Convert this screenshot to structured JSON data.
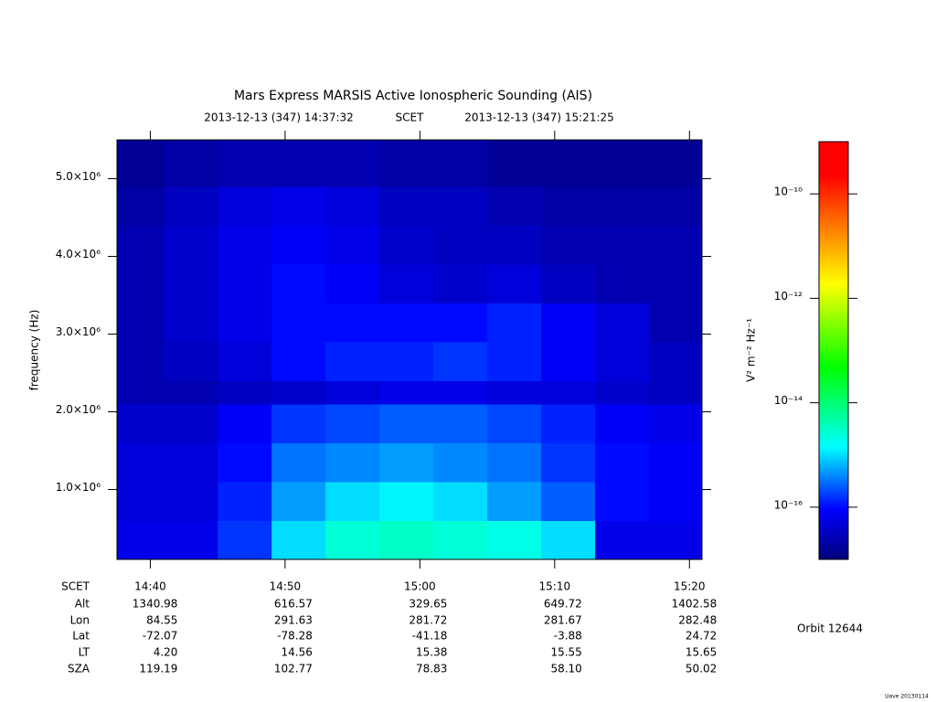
{
  "chart_data": {
    "type": "heatmap",
    "title": "Mars Express MARSIS Active Ionospheric Sounding (AIS)",
    "subtitle_start": "2013-12-13 (347) 14:37:32",
    "subtitle_frame": "SCET",
    "subtitle_end": "2013-12-13 (347) 15:21:25",
    "ylabel": "frequency (Hz)",
    "colorbar_label": "V² m⁻² Hz⁻¹",
    "xlim": [
      877.53,
      920.93
    ],
    "xticks": [
      {
        "value": 880,
        "label": "14:40"
      },
      {
        "value": 890,
        "label": "14:50"
      },
      {
        "value": 900,
        "label": "15:00"
      },
      {
        "value": 910,
        "label": "15:10"
      },
      {
        "value": 920,
        "label": "15:20"
      }
    ],
    "ylim": [
      100000,
      5500000
    ],
    "yticks": [
      {
        "value": 1000000,
        "label": "1.0×10⁶"
      },
      {
        "value": 2000000,
        "label": "2.0×10⁶"
      },
      {
        "value": 3000000,
        "label": "3.0×10⁶"
      },
      {
        "value": 4000000,
        "label": "4.0×10⁶"
      },
      {
        "value": 5000000,
        "label": "5.0×10⁶"
      }
    ],
    "clim": [
      1e-17,
      1e-09
    ],
    "clog": true,
    "cticks": [
      {
        "value": 1e-10,
        "label": "10⁻¹⁰"
      },
      {
        "value": 1e-12,
        "label": "10⁻¹²"
      },
      {
        "value": 1e-14,
        "label": "10⁻¹⁴"
      },
      {
        "value": 1e-16,
        "label": "10⁻¹⁶"
      }
    ],
    "colormap": [
      {
        "at": 0,
        "color": "#00007a"
      },
      {
        "at": 0.12,
        "color": "#0000ff"
      },
      {
        "at": 0.27,
        "color": "#00ffff"
      },
      {
        "at": 0.46,
        "color": "#00ff00"
      },
      {
        "at": 0.66,
        "color": "#ffff00"
      },
      {
        "at": 0.92,
        "color": "#ff0000"
      },
      {
        "at": 1,
        "color": "#ff0000"
      }
    ],
    "x_bins": [
      877.53,
      881,
      885,
      889,
      893,
      897,
      901,
      905,
      909,
      913,
      917,
      920.93
    ],
    "y_bins": [
      100000,
      600000,
      1100000,
      1600000,
      2100000,
      2400000,
      2900000,
      3400000,
      3900000,
      4400000,
      4900000,
      5500000
    ],
    "values": [
      [
        6.3e-17,
        6.3e-17,
        1.6e-16,
        1e-15,
        2.5e-15,
        3.2e-15,
        2.5e-15,
        2e-15,
        1e-15,
        6.3e-17,
        6.3e-17
      ],
      [
        5e-17,
        5e-17,
        1.3e-16,
        5e-16,
        1e-15,
        1.3e-15,
        1e-15,
        5e-16,
        2.5e-16,
        1e-16,
        8e-17
      ],
      [
        5e-17,
        5e-17,
        1e-16,
        3.2e-16,
        4e-16,
        5e-16,
        4e-16,
        3.2e-16,
        1.6e-16,
        1e-16,
        8e-17
      ],
      [
        4e-17,
        4e-17,
        8e-17,
        1.6e-16,
        2e-16,
        2.5e-16,
        2.5e-16,
        2e-16,
        1.3e-16,
        8e-17,
        6.3e-17
      ],
      [
        2.5e-17,
        2.5e-17,
        3.2e-17,
        4e-17,
        5e-17,
        6.3e-17,
        6.3e-17,
        5e-17,
        5e-17,
        4e-17,
        3.2e-17
      ],
      [
        2.5e-17,
        3.2e-17,
        5e-17,
        1e-16,
        1.3e-16,
        1.3e-16,
        1.6e-16,
        1.3e-16,
        8e-17,
        5e-17,
        3.2e-17
      ],
      [
        2.5e-17,
        4e-17,
        6.3e-17,
        1e-16,
        1e-16,
        1e-16,
        1e-16,
        1.3e-16,
        8e-17,
        5e-17,
        2.5e-17
      ],
      [
        2.5e-17,
        4e-17,
        6.3e-17,
        1e-16,
        8e-17,
        5e-17,
        4e-17,
        5e-17,
        3.2e-17,
        2.5e-17,
        2.5e-17
      ],
      [
        2.5e-17,
        4e-17,
        6.3e-17,
        8e-17,
        6.3e-17,
        4e-17,
        3.2e-17,
        3.2e-17,
        2.5e-17,
        2.5e-17,
        2.5e-17
      ],
      [
        2e-17,
        3.2e-17,
        5e-17,
        6.3e-17,
        5e-17,
        3.2e-17,
        3.2e-17,
        2.5e-17,
        2e-17,
        2e-17,
        2e-17
      ],
      [
        1.6e-17,
        2e-17,
        2.5e-17,
        2.5e-17,
        2.5e-17,
        2e-17,
        2e-17,
        1.6e-17,
        1.6e-17,
        1.6e-17,
        1.6e-17
      ]
    ],
    "ephemeris": {
      "labels": [
        "SCET",
        "Alt",
        "Lon",
        "Lat",
        "LT",
        "SZA"
      ],
      "rows": [
        [
          "1340.98",
          "616.57",
          "329.65",
          "649.72",
          "1402.58"
        ],
        [
          "84.55",
          "291.63",
          "281.72",
          "281.67",
          "282.48"
        ],
        [
          "-72.07",
          "-78.28",
          "-41.18",
          "-3.88",
          "24.72"
        ],
        [
          "4.20",
          "14.56",
          "15.38",
          "15.55",
          "15.65"
        ],
        [
          "119.19",
          "102.77",
          "78.83",
          "58.10",
          "50.02"
        ]
      ]
    },
    "orbit": "Orbit 12644",
    "footer": "Uave 20130114"
  }
}
